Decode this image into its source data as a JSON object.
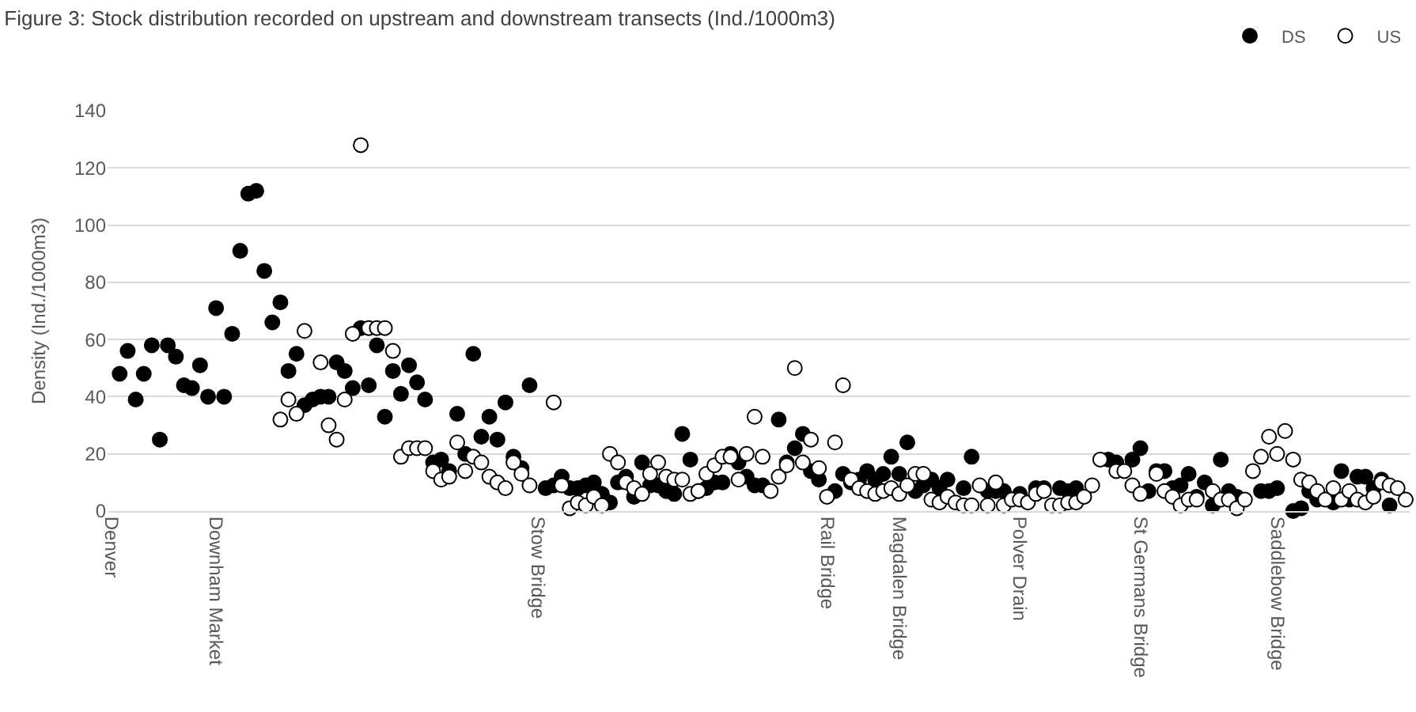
{
  "chart_data": {
    "type": "scatter",
    "title": "Figure 3: Stock distribution recorded on upstream and downstream transects (Ind./1000m3)",
    "ylabel": "Density (Ind./1000m3)",
    "categories": [
      "Denver",
      null,
      null,
      null,
      null,
      null,
      null,
      null,
      null,
      null,
      null,
      null,
      null,
      "Downham Market",
      null,
      null,
      null,
      null,
      null,
      null,
      null,
      null,
      null,
      null,
      null,
      null,
      null,
      null,
      null,
      null,
      null,
      null,
      null,
      null,
      null,
      null,
      null,
      null,
      null,
      null,
      null,
      null,
      null,
      null,
      null,
      null,
      null,
      null,
      null,
      null,
      null,
      null,
      null,
      "Stow Bridge",
      null,
      null,
      null,
      null,
      null,
      null,
      null,
      null,
      null,
      null,
      null,
      null,
      null,
      null,
      null,
      null,
      null,
      null,
      null,
      null,
      null,
      null,
      null,
      null,
      null,
      null,
      null,
      null,
      null,
      null,
      null,
      null,
      null,
      null,
      null,
      "Rail Bridge",
      null,
      null,
      null,
      null,
      null,
      null,
      null,
      null,
      "Magdalen Bridge",
      null,
      null,
      null,
      null,
      null,
      null,
      null,
      null,
      null,
      null,
      null,
      null,
      null,
      null,
      "Polver Drain",
      null,
      null,
      null,
      null,
      null,
      null,
      null,
      null,
      null,
      null,
      null,
      null,
      null,
      null,
      "St Germans Bridge",
      null,
      null,
      null,
      null,
      null,
      null,
      null,
      null,
      null,
      null,
      null,
      null,
      null,
      null,
      null,
      null,
      "Saddlebow Bridge",
      null,
      null,
      null,
      null,
      null,
      null,
      null,
      null,
      null,
      null,
      null,
      null,
      null,
      null,
      null,
      null
    ],
    "series": [
      {
        "name": "DS",
        "color": "#000000",
        "values": [
          null,
          48,
          56,
          39,
          48,
          58,
          25,
          58,
          54,
          44,
          43,
          51,
          40,
          71,
          40,
          62,
          91,
          111,
          112,
          84,
          66,
          73,
          49,
          55,
          37,
          39,
          40,
          40,
          52,
          49,
          43,
          64,
          44,
          58,
          33,
          49,
          41,
          51,
          45,
          39,
          17,
          18,
          14,
          34,
          20,
          55,
          26,
          33,
          25,
          38,
          19,
          15,
          44,
          null,
          8,
          9,
          12,
          8,
          8,
          9,
          10,
          6,
          3,
          10,
          12,
          5,
          17,
          9,
          9,
          7,
          6,
          27,
          18,
          7,
          8,
          10,
          10,
          20,
          17,
          12,
          9,
          9,
          null,
          32,
          17,
          22,
          27,
          14,
          11,
          null,
          7,
          13,
          10,
          11,
          14,
          11,
          13,
          19,
          13,
          24,
          7,
          9,
          11,
          8,
          11,
          null,
          8,
          19,
          null,
          7,
          7,
          7,
          null,
          6,
          null,
          8,
          8,
          null,
          8,
          7,
          8,
          null,
          null,
          null,
          18,
          17,
          null,
          18,
          22,
          7,
          14,
          14,
          8,
          9,
          13,
          5,
          10,
          2,
          18,
          7,
          5,
          null,
          null,
          7,
          7,
          8,
          null,
          0,
          1,
          7,
          4,
          null,
          3,
          14,
          4,
          12,
          12,
          8,
          11,
          2,
          null,
          null
        ]
      },
      {
        "name": "US",
        "color": "#ffffff",
        "values": [
          null,
          null,
          null,
          null,
          null,
          null,
          null,
          null,
          null,
          null,
          null,
          null,
          null,
          null,
          null,
          null,
          null,
          null,
          null,
          null,
          null,
          32,
          39,
          34,
          63,
          null,
          52,
          30,
          25,
          39,
          62,
          128,
          64,
          64,
          64,
          56,
          19,
          22,
          22,
          22,
          14,
          11,
          12,
          24,
          14,
          19,
          17,
          12,
          10,
          8,
          17,
          13,
          9,
          null,
          null,
          38,
          9,
          1,
          3,
          2,
          5,
          2,
          20,
          17,
          10,
          8,
          6,
          13,
          17,
          12,
          11,
          11,
          6,
          7,
          13,
          16,
          19,
          19,
          11,
          20,
          33,
          19,
          7,
          12,
          16,
          50,
          17,
          25,
          15,
          5,
          24,
          44,
          11,
          8,
          7,
          6,
          7,
          8,
          6,
          9,
          13,
          13,
          4,
          3,
          5,
          3,
          2,
          2,
          9,
          2,
          10,
          2,
          4,
          4,
          3,
          6,
          7,
          2,
          2,
          3,
          3,
          5,
          9,
          18,
          null,
          14,
          14,
          9,
          6,
          null,
          13,
          7,
          5,
          2,
          4,
          4,
          null,
          7,
          4,
          4,
          1,
          4,
          14,
          19,
          26,
          20,
          28,
          18,
          11,
          10,
          7,
          4,
          8,
          4,
          7,
          4,
          3,
          5,
          10,
          9,
          8,
          4
        ]
      }
    ],
    "ylim": [
      0,
      140
    ],
    "yticks": [
      0,
      20,
      40,
      60,
      80,
      100,
      120,
      140
    ],
    "grid": "y",
    "legend": "top right",
    "marker": "circle"
  }
}
